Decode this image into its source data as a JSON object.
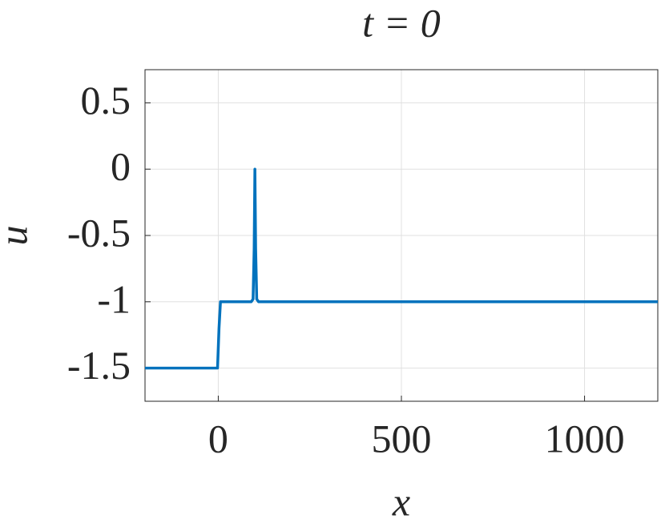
{
  "chart_data": {
    "type": "line",
    "title": "t = 0",
    "x_label": "x",
    "y_label": "u",
    "x": [
      -200,
      -2,
      2,
      6,
      90,
      95,
      98,
      100,
      102,
      105,
      110,
      1200
    ],
    "series": [
      {
        "name": "u",
        "color": "#0072bd",
        "values": [
          -1.5,
          -1.5,
          -1.2,
          -1,
          -1,
          -0.98,
          -0.6,
          0,
          -0.6,
          -0.98,
          -1,
          -1
        ]
      }
    ],
    "xlim": [
      -200,
      1200
    ],
    "xticks": [
      0,
      500,
      1000
    ],
    "ylim": [
      -1.75,
      0.75
    ],
    "yticks": [
      0.5,
      0,
      -0.5,
      -1,
      -1.5
    ],
    "grid": true
  }
}
